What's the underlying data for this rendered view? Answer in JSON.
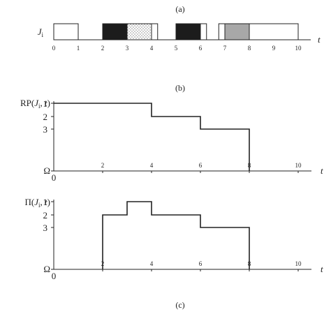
{
  "captions": {
    "a": "(a)",
    "b": "(b)",
    "c": "(c)"
  },
  "panel_a": {
    "row_label": "J",
    "row_label_sub": "i",
    "axis_label": "t",
    "ticks": [
      "0",
      "1",
      "2",
      "3",
      "4",
      "5",
      "6",
      "7",
      "8",
      "9",
      "10"
    ],
    "intervals": [
      {
        "start": 0,
        "end": 1,
        "fill": "white"
      },
      {
        "start": 2,
        "end": 3,
        "fill": "black"
      },
      {
        "start": 3,
        "end": 4,
        "fill": "dotted"
      },
      {
        "start": 4,
        "end": 4.25,
        "fill": "white"
      },
      {
        "start": 5,
        "end": 6,
        "fill": "black"
      },
      {
        "start": 6,
        "end": 6.25,
        "fill": "white"
      },
      {
        "start": 6.75,
        "end": 7,
        "fill": "white"
      },
      {
        "start": 7,
        "end": 8,
        "fill": "gray"
      },
      {
        "start": 8,
        "end": 10,
        "fill": "white"
      }
    ]
  },
  "panel_b": {
    "y_label_prefix": "RP(",
    "y_label_var": "J",
    "y_label_sub": "i",
    "y_label_mid": ", ",
    "y_label_t": "t",
    "y_label_suffix": ")",
    "y_ticks": [
      "1",
      "2",
      "3"
    ],
    "omega": "Ω",
    "origin": "0",
    "x_ticks": [
      "2",
      "4",
      "6",
      "8",
      "10"
    ],
    "axis_label": "t",
    "step": [
      [
        0,
        1
      ],
      [
        4,
        1
      ],
      [
        4,
        2
      ],
      [
        6,
        2
      ],
      [
        6,
        3
      ],
      [
        8,
        3
      ],
      [
        8,
        "Ω"
      ]
    ]
  },
  "panel_c": {
    "y_label_prefix": "Π(",
    "y_label_var": "J",
    "y_label_sub": "i",
    "y_label_mid": ", ",
    "y_label_t": "t",
    "y_label_suffix": ")",
    "y_ticks": [
      "1",
      "2",
      "3"
    ],
    "omega": "Ω",
    "origin": "0",
    "x_ticks": [
      "2",
      "4",
      "6",
      "8",
      "10"
    ],
    "axis_label": "t",
    "step": [
      [
        2,
        "Ω"
      ],
      [
        2,
        2
      ],
      [
        3,
        2
      ],
      [
        3,
        1
      ],
      [
        4,
        1
      ],
      [
        4,
        2
      ],
      [
        6,
        2
      ],
      [
        6,
        3
      ],
      [
        8,
        3
      ],
      [
        8,
        "Ω"
      ]
    ]
  },
  "colors": {
    "ink": "#222222",
    "black_fill": "#1c1c1c",
    "gray_fill": "#a8a8a8",
    "dot_fill": "#555555"
  }
}
